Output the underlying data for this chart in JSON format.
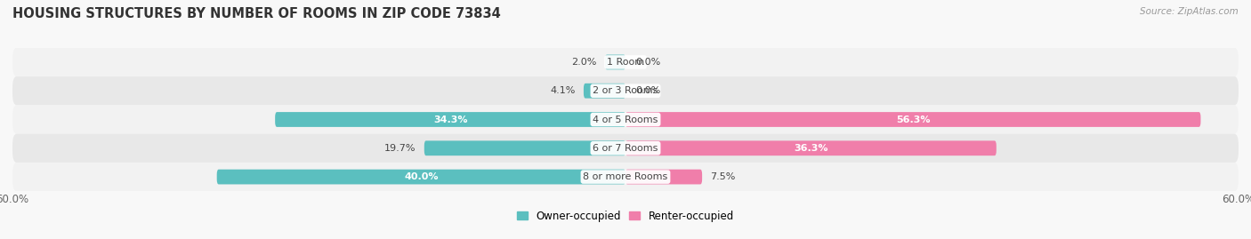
{
  "title": "HOUSING STRUCTURES BY NUMBER OF ROOMS IN ZIP CODE 73834",
  "source": "Source: ZipAtlas.com",
  "categories": [
    "1 Room",
    "2 or 3 Rooms",
    "4 or 5 Rooms",
    "6 or 7 Rooms",
    "8 or more Rooms"
  ],
  "owner_values": [
    2.0,
    4.1,
    34.3,
    19.7,
    40.0
  ],
  "renter_values": [
    0.0,
    0.0,
    56.3,
    36.3,
    7.5
  ],
  "owner_color": "#5BBFBF",
  "renter_color": "#F07EAA",
  "row_bg_even": "#F2F2F2",
  "row_bg_odd": "#E8E8E8",
  "xlim": 60.0,
  "label_fontsize": 8.0,
  "title_fontsize": 10.5,
  "bar_height": 0.52,
  "legend_labels": [
    "Owner-occupied",
    "Renter-occupied"
  ]
}
